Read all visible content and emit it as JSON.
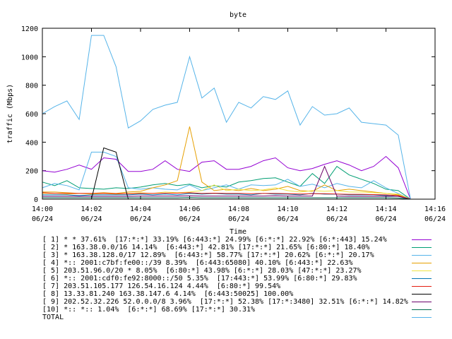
{
  "chart_data": {
    "type": "line",
    "title": "byte",
    "xlabel": "Time",
    "ylabel": "traffic (Mbps)",
    "ylim": [
      0,
      1200
    ],
    "xlim": [
      0,
      16
    ],
    "grid": false,
    "legend_position": "bottom",
    "yticks": [
      0,
      200,
      400,
      600,
      800,
      1000,
      1200
    ],
    "xticks": [
      {
        "x": 0,
        "time": "14:00",
        "date": "06/24"
      },
      {
        "x": 2,
        "time": "14:02",
        "date": "06/24"
      },
      {
        "x": 4,
        "time": "14:04",
        "date": "06/24"
      },
      {
        "x": 6,
        "time": "14:06",
        "date": "06/24"
      },
      {
        "x": 8,
        "time": "14:08",
        "date": "06/24"
      },
      {
        "x": 10,
        "time": "14:10",
        "date": "06/24"
      },
      {
        "x": 12,
        "time": "14:12",
        "date": "06/24"
      },
      {
        "x": 14,
        "time": "14:14",
        "date": "06/24"
      },
      {
        "x": 16,
        "time": "14:16",
        "date": "06/24"
      }
    ],
    "x": [
      0,
      0.5,
      1,
      1.5,
      2,
      2.5,
      3,
      3.5,
      4,
      4.5,
      5,
      5.5,
      6,
      6.5,
      7,
      7.5,
      8,
      8.5,
      9,
      9.5,
      10,
      10.5,
      11,
      11.5,
      12,
      12.5,
      13,
      13.5,
      14,
      14.5,
      15
    ],
    "series": [
      {
        "name": "[ 1] * * 37.61%  [17:*:*] 33.19% [6:443:*] 24.99% [6:*:*] 22.92% [6:*:443] 15.24%",
        "color": "#9400d3",
        "values": [
          200,
          190,
          210,
          240,
          210,
          290,
          280,
          195,
          195,
          210,
          270,
          210,
          195,
          260,
          270,
          210,
          210,
          230,
          270,
          290,
          220,
          200,
          215,
          245,
          270,
          240,
          200,
          230,
          300,
          220,
          0
        ]
      },
      {
        "name": "[ 2] * 163.38.0.0/16 14.14%  [6:443:*] 42.81% [17:*:*] 21.65% [6:80:*] 18.40%",
        "color": "#009e73",
        "values": [
          120,
          95,
          130,
          80,
          75,
          70,
          80,
          75,
          85,
          100,
          110,
          95,
          105,
          80,
          95,
          85,
          120,
          130,
          145,
          150,
          120,
          90,
          180,
          110,
          230,
          170,
          140,
          110,
          70,
          60,
          0
        ]
      },
      {
        "name": "[ 3] * 163.38.128.0/17 12.89%  [6:443:*] 58.77% [17:*:*] 20.62% [6:*:*] 20.17%",
        "color": "#56b4e9",
        "values": [
          80,
          110,
          95,
          65,
          330,
          330,
          300,
          80,
          70,
          80,
          70,
          65,
          100,
          60,
          80,
          100,
          70,
          100,
          95,
          100,
          140,
          90,
          105,
          80,
          110,
          90,
          80,
          130,
          80,
          40,
          0
        ]
      },
      {
        "name": "[ 4] *:: 2001:c7bf:fe00::/39 8.39%  [6:443:65080] 40.10% [6:443:*] 22.63%",
        "color": "#e69f00",
        "values": [
          50,
          50,
          45,
          40,
          40,
          45,
          40,
          50,
          55,
          80,
          100,
          130,
          510,
          120,
          60,
          70,
          60,
          75,
          60,
          70,
          90,
          60,
          55,
          100,
          60,
          70,
          60,
          50,
          40,
          30,
          0
        ]
      },
      {
        "name": "[ 5] 203.51.96.0/20 * 8.05%  [6:80:*] 43.98% [6:*:*] 28.03% [47:*:*] 23.27%",
        "color": "#f0e442",
        "values": [
          40,
          40,
          35,
          40,
          35,
          40,
          35,
          40,
          45,
          40,
          50,
          45,
          50,
          60,
          100,
          60,
          70,
          60,
          65,
          80,
          60,
          50,
          60,
          55,
          60,
          50,
          50,
          45,
          40,
          35,
          0
        ]
      },
      {
        "name": "[ 6] *:: 2001:cdf0:fe92:8000::/50 5.35%  [17:443:*] 53.99% [6:80:*] 29.83%",
        "color": "#0072b2",
        "values": [
          30,
          30,
          30,
          25,
          30,
          30,
          30,
          30,
          35,
          30,
          35,
          30,
          40,
          35,
          40,
          35,
          35,
          30,
          40,
          35,
          35,
          30,
          40,
          35,
          35,
          30,
          30,
          30,
          25,
          20,
          0
        ]
      },
      {
        "name": "[ 7] 203.51.105.177 126.54.16.124 4.44%  [6:80:*] 99.54%",
        "color": "#e51e10",
        "values": [
          45,
          40,
          40,
          40,
          40,
          40,
          38,
          38,
          40,
          40,
          42,
          42,
          45,
          40,
          42,
          40,
          40,
          38,
          40,
          40,
          38,
          36,
          38,
          38,
          36,
          34,
          34,
          32,
          30,
          25,
          0
        ]
      },
      {
        "name": "[ 8] 13.33.81.240 163.38.147.6 4.14%  [6:443:50025] 100.00%",
        "color": "#000000",
        "values": [
          0,
          0,
          0,
          0,
          0,
          360,
          330,
          0,
          0,
          0,
          0,
          0,
          0,
          0,
          0,
          0,
          0,
          0,
          0,
          0,
          0,
          0,
          0,
          0,
          0,
          0,
          0,
          0,
          0,
          0,
          0
        ]
      },
      {
        "name": "[ 9] 202.52.32.226 52.0.0.0/8 3.96%  [17:*:*] 52.38% [17:*:3480] 32.51% [6:*:*] 14.82%",
        "color": "#6a006a",
        "values": [
          20,
          20,
          20,
          20,
          20,
          20,
          20,
          20,
          22,
          22,
          22,
          22,
          24,
          22,
          22,
          22,
          22,
          22,
          22,
          24,
          22,
          22,
          22,
          230,
          22,
          20,
          20,
          20,
          20,
          20,
          0
        ]
      },
      {
        "name": "[10] *:: *:: 1.04%  [6:*:*] 68.69% [17:*:*] 30.31%",
        "color": "#006b4e",
        "values": [
          10,
          10,
          10,
          10,
          10,
          10,
          10,
          10,
          10,
          10,
          10,
          10,
          12,
          10,
          10,
          10,
          10,
          10,
          10,
          10,
          10,
          10,
          10,
          10,
          10,
          10,
          10,
          10,
          10,
          8,
          0
        ]
      },
      {
        "name": "TOTAL",
        "color": "#56b4e9",
        "values": [
          600,
          650,
          690,
          560,
          1150,
          1150,
          930,
          500,
          550,
          630,
          660,
          680,
          1000,
          710,
          780,
          540,
          680,
          640,
          720,
          700,
          760,
          520,
          650,
          590,
          600,
          640,
          540,
          530,
          520,
          450,
          0
        ]
      }
    ]
  }
}
